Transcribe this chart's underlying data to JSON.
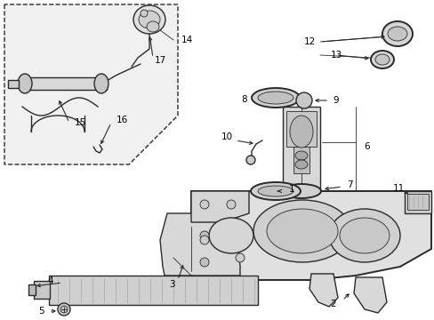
{
  "background_color": "#ffffff",
  "line_color": "#2a2a2a",
  "label_color": "#000000",
  "fig_width": 4.89,
  "fig_height": 3.6,
  "dpi": 100,
  "lw_main": 1.0,
  "lw_thin": 0.6,
  "lw_thick": 1.4
}
